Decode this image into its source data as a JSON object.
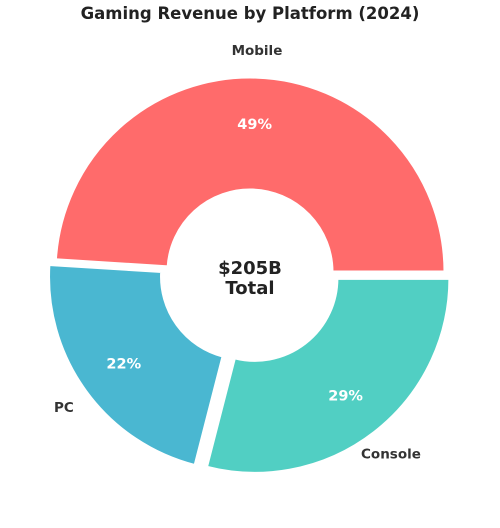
{
  "chart_data": {
    "type": "pie",
    "subtype": "donut",
    "title": "Gaming Revenue by Platform (2024)",
    "categories": [
      "Mobile",
      "PC",
      "Console"
    ],
    "values": [
      49,
      22,
      29
    ],
    "value_labels": [
      "49%",
      "22%",
      "29%"
    ],
    "colors": [
      "#ff6b6b",
      "#4ab7d1",
      "#51cfc3"
    ],
    "exploded": [
      false,
      true,
      true
    ],
    "start_angle_deg": 0,
    "direction": "counterclockwise",
    "center_label": [
      "$205B",
      "Total"
    ],
    "legend": "none"
  }
}
